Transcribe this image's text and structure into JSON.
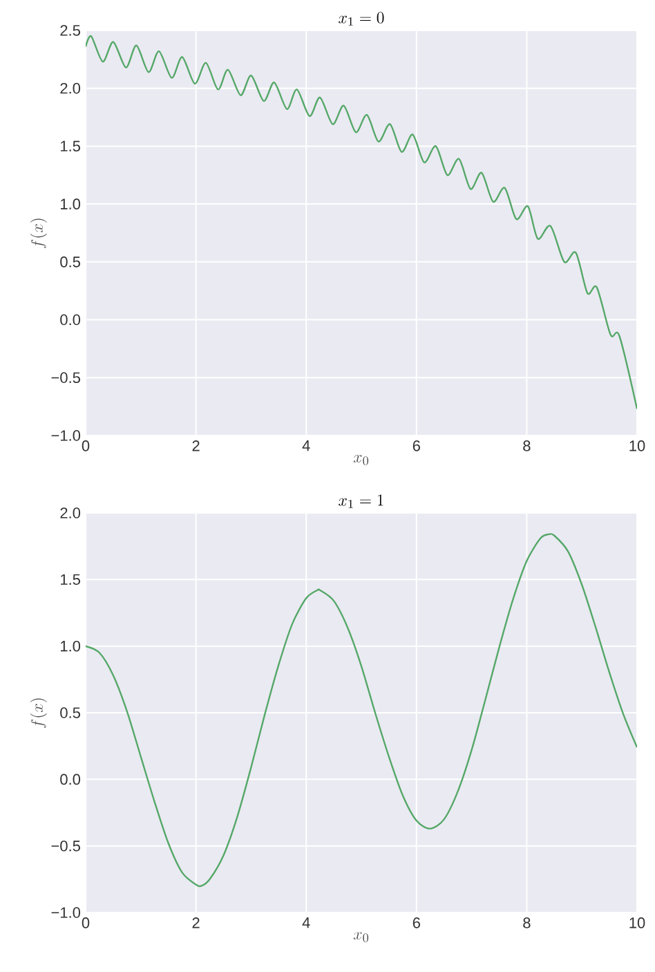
{
  "chart_data": [
    {
      "type": "line",
      "title": "x_1 = 0",
      "xlabel": "x_0",
      "ylabel": "f(x)",
      "xlim": [
        0,
        10
      ],
      "ylim": [
        -1.0,
        2.5
      ],
      "xticks": [
        0,
        2,
        4,
        6,
        8,
        10
      ],
      "yticks": [
        {
          "value": -1.0,
          "label": "−1.0"
        },
        {
          "value": -0.5,
          "label": "−0.5"
        },
        {
          "value": 0,
          "label": "0.0"
        },
        {
          "value": 0.5,
          "label": "0.5"
        },
        {
          "value": 1.0,
          "label": "1.0"
        },
        {
          "value": 1.5,
          "label": "1.5"
        },
        {
          "value": 2.0,
          "label": "2.0"
        },
        {
          "value": 2.5,
          "label": "2.5"
        }
      ],
      "grid": true,
      "series": [
        {
          "color": "#55a868",
          "x": [
            0,
            0.1,
            0.31,
            0.5,
            0.73,
            0.92,
            1.14,
            1.33,
            1.56,
            1.75,
            1.98,
            2.18,
            2.4,
            2.58,
            2.81,
            3.0,
            3.23,
            3.42,
            3.65,
            3.83,
            4.06,
            4.25,
            4.48,
            4.68,
            4.9,
            5.1,
            5.31,
            5.52,
            5.73,
            5.93,
            6.14,
            6.35,
            6.56,
            6.77,
            6.98,
            7.18,
            7.39,
            7.6,
            7.81,
            8.02,
            8.2,
            8.43,
            8.68,
            8.89,
            9.1,
            9.27,
            9.52,
            9.68,
            10
          ],
          "values": [
            2.36,
            2.45,
            2.23,
            2.4,
            2.18,
            2.37,
            2.14,
            2.32,
            2.09,
            2.27,
            2.04,
            2.22,
            1.99,
            2.16,
            1.94,
            2.11,
            1.89,
            2.05,
            1.82,
            1.99,
            1.76,
            1.92,
            1.69,
            1.85,
            1.62,
            1.77,
            1.54,
            1.69,
            1.45,
            1.6,
            1.36,
            1.5,
            1.25,
            1.39,
            1.13,
            1.27,
            1.02,
            1.14,
            0.87,
            0.98,
            0.7,
            0.81,
            0.5,
            0.58,
            0.23,
            0.28,
            -0.13,
            -0.14,
            -0.77
          ]
        }
      ]
    },
    {
      "type": "line",
      "title": "x_1 = 1",
      "xlabel": "x_0",
      "ylabel": "f(x)",
      "xlim": [
        0,
        10
      ],
      "ylim": [
        -1.0,
        2.0
      ],
      "xticks": [
        0,
        2,
        4,
        6,
        8,
        10
      ],
      "yticks": [
        {
          "value": -1.0,
          "label": "−1.0"
        },
        {
          "value": -0.5,
          "label": "−0.5"
        },
        {
          "value": 0,
          "label": "0.0"
        },
        {
          "value": 0.5,
          "label": "0.5"
        },
        {
          "value": 1.0,
          "label": "1.0"
        },
        {
          "value": 1.5,
          "label": "1.5"
        },
        {
          "value": 2.0,
          "label": "2.0"
        }
      ],
      "grid": true,
      "series": [
        {
          "color": "#55a868",
          "x": [
            0,
            0.25,
            0.5,
            0.75,
            1,
            1.25,
            1.5,
            1.75,
            2,
            2.1,
            2.25,
            2.5,
            2.75,
            3,
            3.25,
            3.5,
            3.75,
            4,
            4.2,
            4.25,
            4.5,
            4.75,
            5,
            5.25,
            5.5,
            5.75,
            6,
            6.25,
            6.5,
            6.75,
            7,
            7.25,
            7.5,
            7.75,
            8,
            8.25,
            8.4,
            8.5,
            8.75,
            9,
            9.25,
            9.5,
            9.75,
            10
          ],
          "values": [
            1.0,
            0.95,
            0.78,
            0.51,
            0.17,
            -0.17,
            -0.48,
            -0.7,
            -0.79,
            -0.8,
            -0.75,
            -0.57,
            -0.28,
            0.09,
            0.49,
            0.86,
            1.17,
            1.36,
            1.42,
            1.42,
            1.34,
            1.14,
            0.85,
            0.5,
            0.17,
            -0.12,
            -0.31,
            -0.37,
            -0.3,
            -0.09,
            0.22,
            0.6,
            0.99,
            1.35,
            1.64,
            1.81,
            1.84,
            1.83,
            1.71,
            1.46,
            1.14,
            0.8,
            0.49,
            0.24
          ]
        }
      ]
    }
  ]
}
